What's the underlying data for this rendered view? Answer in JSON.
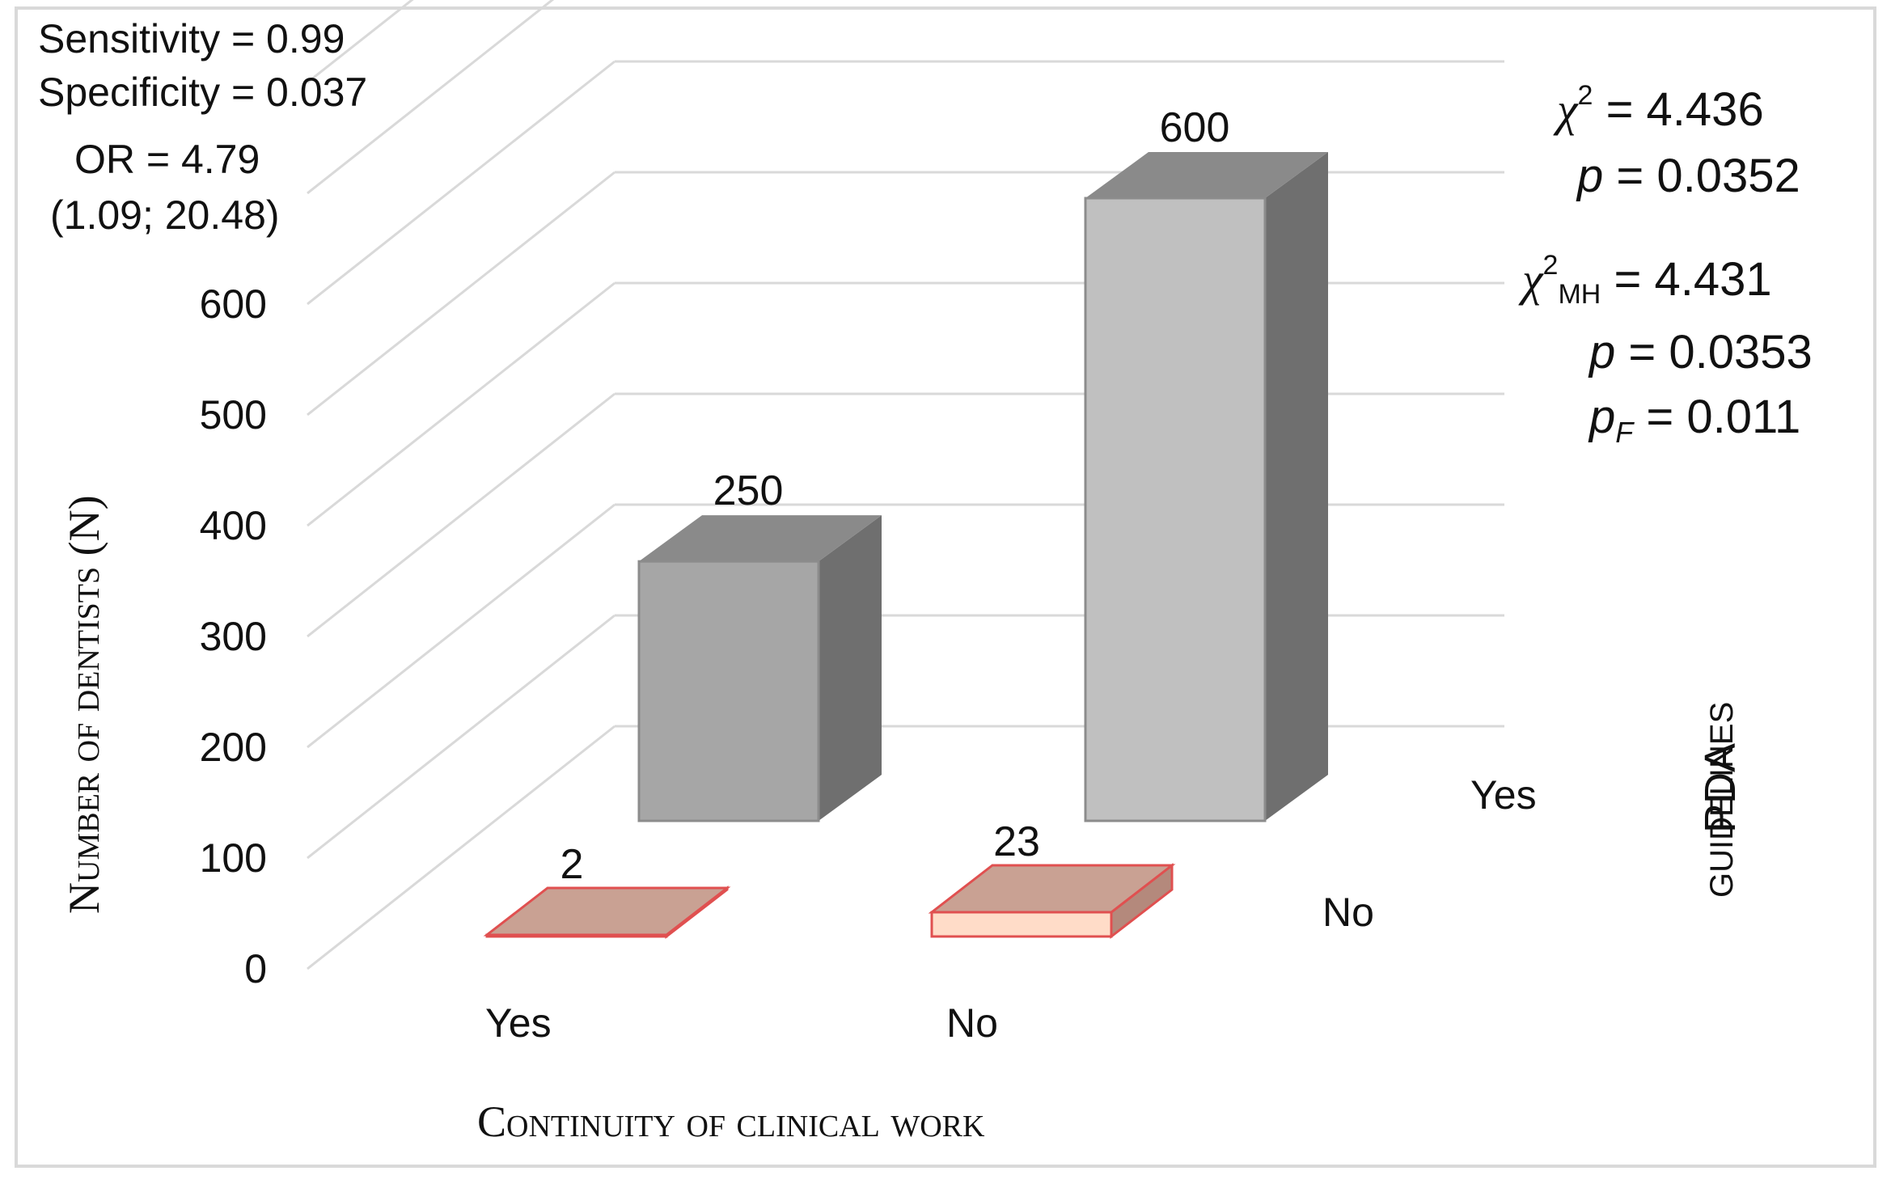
{
  "chart_data": {
    "type": "bar",
    "subtype": "3d-bar",
    "title": "",
    "xlabel": "Continuity of clinical work",
    "ylabel": "Number of dentists (N)",
    "zlabel": "PDA",
    "zlabel_sub": "guidelines",
    "ylim": [
      0,
      800
    ],
    "yticks": [
      "0",
      "100",
      "200",
      "300",
      "400",
      "500",
      "600"
    ],
    "categories": [
      "Yes",
      "No"
    ],
    "series": [
      {
        "name": "Yes",
        "values": [
          250,
          600
        ],
        "colors": [
          "#a6a6a6",
          "#c0c0c0"
        ]
      },
      {
        "name": "No",
        "values": [
          2,
          23
        ],
        "colors": [
          "#c9a193",
          "#ffdcc8"
        ]
      }
    ],
    "data_labels": [
      {
        "category": "Yes",
        "series": "Yes",
        "text": "250"
      },
      {
        "category": "No",
        "series": "Yes",
        "text": "600"
      },
      {
        "category": "Yes",
        "series": "No",
        "text": "2"
      },
      {
        "category": "No",
        "series": "No",
        "text": "23"
      }
    ],
    "grid": true,
    "legend": "none"
  },
  "annotations_left": {
    "sensitivity": "Sensitivity = 0.99",
    "specificity": "Specificity = 0.037",
    "odds_ratio": "OR = 4.79",
    "confidence_interval": "(1.09; 20.48)"
  },
  "annotations_right": {
    "chi2_symbol": "χ",
    "chi2_sup": "2",
    "chi2_value": " = 4.436",
    "p1_symbol": "p",
    "p1_value": " = 0.0352",
    "chi2mh_symbol": "χ",
    "chi2mh_sup": "2",
    "chi2mh_sub": "MH",
    "chi2mh_value": " = 4.431",
    "p2_symbol": "p",
    "p2_value": " = 0.0353",
    "pf_symbol": "p",
    "pf_sub": "F",
    "pf_value": " = 0.011"
  },
  "colors": {
    "grid": "#d9d9d9",
    "frame": "#d9d9d9",
    "bar_back_front": "#a6a6a6",
    "bar_back_front_alt": "#c0c0c0",
    "bar_back_top": "#8a8a8a",
    "bar_back_side": "#6f6f6f",
    "bar_front_edge": "#e05050",
    "bar_front_top": "#c9a193",
    "bar_front_front": "#ffdcc8",
    "bar_front_side": "#b4897c",
    "text": "#111111"
  }
}
